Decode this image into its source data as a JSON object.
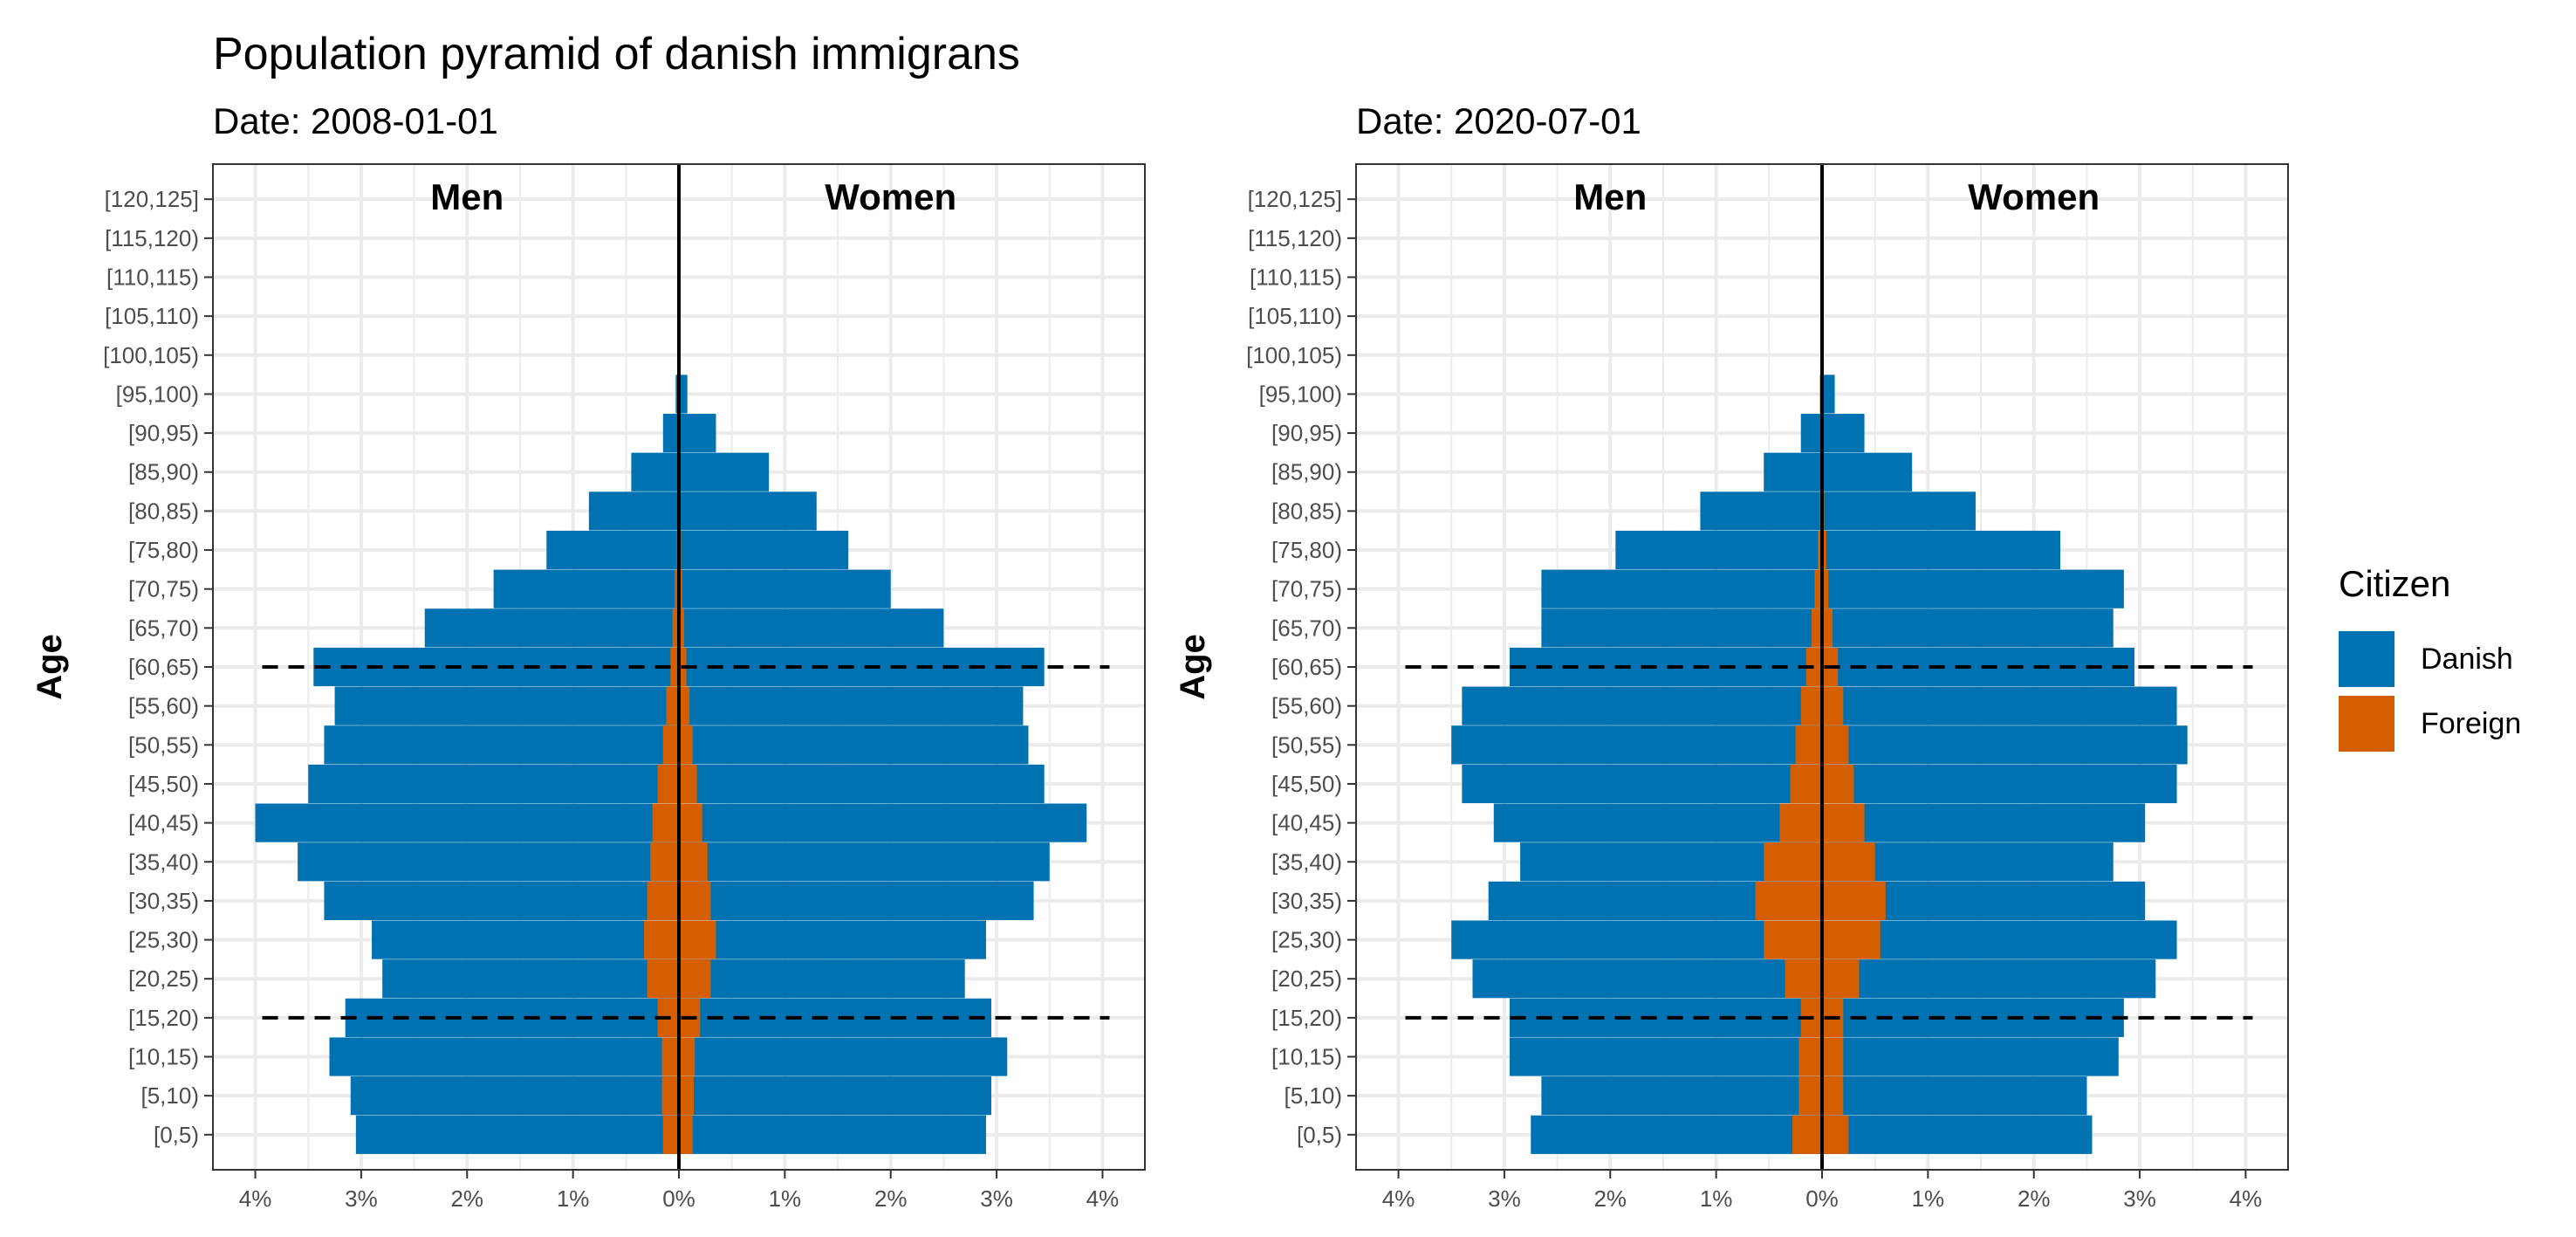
{
  "title": "Population pyramid of danish immigrans",
  "colors": {
    "danish": "#0072B2",
    "foreign": "#D55E00"
  },
  "legend": {
    "title": "Citizen",
    "items": [
      {
        "label": "Danish",
        "color": "#0072B2"
      },
      {
        "label": "Foreign",
        "color": "#D55E00"
      }
    ]
  },
  "chart_data": [
    {
      "type": "bar",
      "orientation": "horizontal-pyramid",
      "subtitle": "Date: 2008-01-01",
      "ylabel": "Age",
      "xlim": [
        -4,
        4
      ],
      "x_unit": "%",
      "x_ticks": [
        "4%",
        "3%",
        "2%",
        "1%",
        "0%",
        "1%",
        "2%",
        "3%",
        "4%"
      ],
      "panel_labels": {
        "left": "Men",
        "right": "Women"
      },
      "reference_lines_at_age_groups": [
        "[60,65)",
        "[15,20)"
      ],
      "grid": true,
      "categories": [
        "[0,5)",
        "[5,10)",
        "[10,15)",
        "[15,20)",
        "[20,25)",
        "[25,30)",
        "[30,35)",
        "[35,40)",
        "[40,45)",
        "[45,50)",
        "[50,55)",
        "[55,60)",
        "[60,65)",
        "[65,70)",
        "[70,75)",
        "[75,80)",
        "[80,85)",
        "[85,90)",
        "[90,95)",
        "[95,100)",
        "[100,105)",
        "[105,110)",
        "[110,115)",
        "[115,120)",
        "[120,125]"
      ],
      "series": [
        {
          "name": "Danish",
          "side": "Men",
          "values": [
            3.05,
            3.1,
            3.3,
            3.15,
            2.8,
            2.9,
            3.35,
            3.6,
            4.0,
            3.5,
            3.35,
            3.25,
            3.45,
            2.4,
            1.75,
            1.25,
            0.85,
            0.45,
            0.15,
            0.03,
            0,
            0,
            0,
            0,
            0
          ]
        },
        {
          "name": "Foreign",
          "side": "Men",
          "values": [
            0.15,
            0.16,
            0.16,
            0.2,
            0.3,
            0.33,
            0.3,
            0.27,
            0.25,
            0.2,
            0.15,
            0.12,
            0.08,
            0.06,
            0.04,
            0.02,
            0.01,
            0,
            0,
            0,
            0,
            0,
            0,
            0,
            0
          ]
        },
        {
          "name": "Danish",
          "side": "Women",
          "values": [
            2.9,
            2.95,
            3.1,
            2.95,
            2.7,
            2.9,
            3.35,
            3.5,
            3.85,
            3.45,
            3.3,
            3.25,
            3.45,
            2.5,
            2.0,
            1.6,
            1.3,
            0.85,
            0.35,
            0.08,
            0,
            0,
            0,
            0,
            0
          ]
        },
        {
          "name": "Foreign",
          "side": "Women",
          "values": [
            0.13,
            0.14,
            0.15,
            0.2,
            0.3,
            0.35,
            0.3,
            0.27,
            0.22,
            0.17,
            0.13,
            0.1,
            0.07,
            0.05,
            0.03,
            0.02,
            0.01,
            0,
            0,
            0,
            0,
            0,
            0,
            0,
            0
          ]
        }
      ]
    },
    {
      "type": "bar",
      "orientation": "horizontal-pyramid",
      "subtitle": "Date: 2020-07-01",
      "ylabel": "Age",
      "xlim": [
        -4,
        4
      ],
      "x_unit": "%",
      "x_ticks": [
        "4%",
        "3%",
        "2%",
        "1%",
        "0%",
        "1%",
        "2%",
        "3%",
        "4%"
      ],
      "panel_labels": {
        "left": "Men",
        "right": "Women"
      },
      "reference_lines_at_age_groups": [
        "[60,65)",
        "[15,20)"
      ],
      "grid": true,
      "categories": [
        "[0,5)",
        "[5,10)",
        "[10,15)",
        "[15,20)",
        "[20,25)",
        "[25,30)",
        "[30,35)",
        "[35,40)",
        "[40,45)",
        "[45,50)",
        "[50,55)",
        "[55,60)",
        "[60,65)",
        "[65,70)",
        "[70,75)",
        "[75,80)",
        "[80,85)",
        "[85,90)",
        "[90,95)",
        "[95,100)",
        "[100,105)",
        "[105,110)",
        "[110,115)",
        "[115,120)",
        "[120,125]"
      ],
      "series": [
        {
          "name": "Danish",
          "side": "Men",
          "values": [
            2.75,
            2.65,
            2.95,
            2.95,
            3.3,
            3.5,
            3.15,
            2.85,
            3.1,
            3.4,
            3.5,
            3.4,
            2.95,
            2.65,
            2.65,
            1.95,
            1.15,
            0.55,
            0.2,
            0.02,
            0,
            0,
            0,
            0,
            0
          ]
        },
        {
          "name": "Foreign",
          "side": "Men",
          "values": [
            0.28,
            0.22,
            0.22,
            0.2,
            0.35,
            0.55,
            0.63,
            0.55,
            0.4,
            0.3,
            0.25,
            0.2,
            0.15,
            0.1,
            0.07,
            0.04,
            0.02,
            0.01,
            0,
            0,
            0,
            0,
            0,
            0,
            0
          ]
        },
        {
          "name": "Danish",
          "side": "Women",
          "values": [
            2.55,
            2.5,
            2.8,
            2.85,
            3.15,
            3.35,
            3.05,
            2.75,
            3.05,
            3.35,
            3.45,
            3.35,
            2.95,
            2.75,
            2.85,
            2.25,
            1.45,
            0.85,
            0.4,
            0.12,
            0,
            0,
            0,
            0,
            0
          ]
        },
        {
          "name": "Foreign",
          "side": "Women",
          "values": [
            0.25,
            0.2,
            0.2,
            0.2,
            0.35,
            0.55,
            0.6,
            0.5,
            0.4,
            0.3,
            0.25,
            0.2,
            0.15,
            0.1,
            0.06,
            0.04,
            0.02,
            0.01,
            0,
            0,
            0,
            0,
            0,
            0,
            0
          ]
        }
      ]
    }
  ]
}
